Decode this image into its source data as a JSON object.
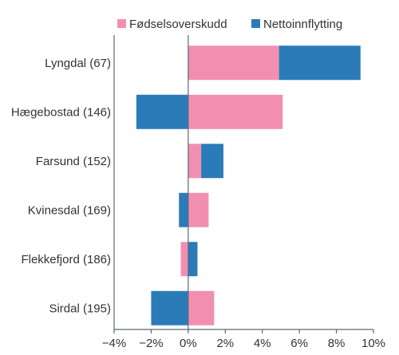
{
  "chart_data": {
    "type": "bar",
    "orientation": "horizontal",
    "stacking": "diverging",
    "categories": [
      "Lyngdal (67)",
      "Hægebostad (146)",
      "Farsund (152)",
      "Kvinesdal (169)",
      "Flekkefjord (186)",
      "Sirdal (195)"
    ],
    "series": [
      {
        "name": "Fødselsoverskudd",
        "color": "#f28fb1",
        "values": [
          4.9,
          5.1,
          0.7,
          1.1,
          -0.4,
          1.4
        ]
      },
      {
        "name": "Nettoinnflytting",
        "color": "#2b7bb9",
        "values": [
          4.4,
          -2.8,
          1.2,
          -0.5,
          0.5,
          -2.0
        ]
      }
    ],
    "xlim": [
      -4,
      10
    ],
    "xticks": [
      -4,
      -2,
      0,
      2,
      4,
      6,
      8,
      10
    ],
    "tick_labels": [
      "−4%",
      "−2%",
      "0%",
      "2%",
      "4%",
      "6%",
      "8%",
      "10%"
    ],
    "legend_position": "top-right",
    "grid": false
  }
}
